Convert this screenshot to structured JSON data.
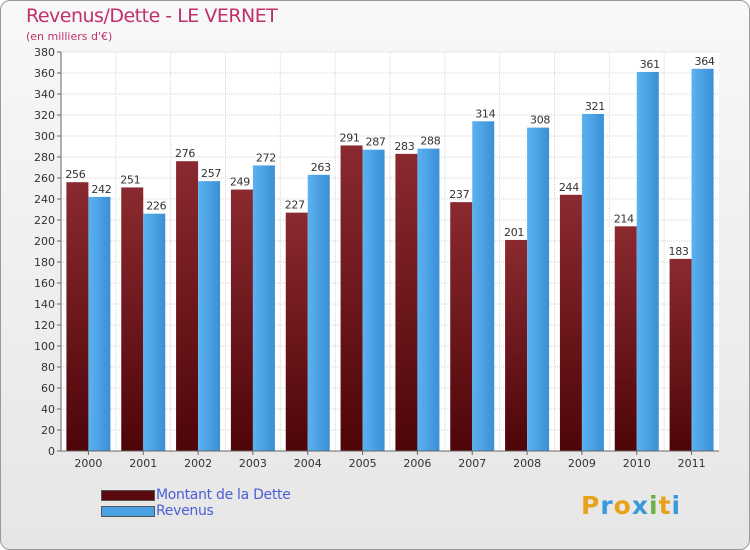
{
  "header": {
    "title": "Revenus/Dette - LE VERNET",
    "subtitle": "(en milliers d'€)"
  },
  "colors": {
    "dette": "#7a1f24",
    "revenus": "#4aa1e4",
    "title": "#c0306a",
    "legend_text": "#4a5fd6"
  },
  "legend": {
    "position": "bottom-left",
    "items": [
      {
        "label": "Montant de la Dette",
        "color": "#5a0a0e"
      },
      {
        "label": "Revenus",
        "color": "#4aa1e4"
      }
    ]
  },
  "logo": {
    "letters": [
      {
        "ch": "P",
        "color": "#e8a11a"
      },
      {
        "ch": "r",
        "color": "#3a9ad9"
      },
      {
        "ch": "o",
        "color": "#e8a11a"
      },
      {
        "ch": "x",
        "color": "#3a9ad9"
      },
      {
        "ch": "i",
        "color": "#6ab04c"
      },
      {
        "ch": "t",
        "color": "#e8a11a"
      },
      {
        "ch": "i",
        "color": "#3a9ad9"
      }
    ]
  },
  "chart_data": {
    "type": "bar",
    "title": "Revenus/Dette - LE VERNET",
    "subtitle": "(en milliers d'€)",
    "xlabel": "",
    "ylabel": "",
    "categories": [
      "2000",
      "2001",
      "2002",
      "2003",
      "2004",
      "2005",
      "2006",
      "2007",
      "2008",
      "2009",
      "2010",
      "2011"
    ],
    "series": [
      {
        "name": "Montant de la Dette",
        "values": [
          256,
          251,
          276,
          249,
          227,
          291,
          283,
          237,
          201,
          244,
          214,
          183
        ]
      },
      {
        "name": "Revenus",
        "values": [
          242,
          226,
          257,
          272,
          263,
          287,
          288,
          314,
          308,
          321,
          361,
          364
        ]
      }
    ],
    "ylim": [
      0,
      380
    ],
    "ytick_step": 20,
    "grid": true,
    "data_labels": true
  }
}
